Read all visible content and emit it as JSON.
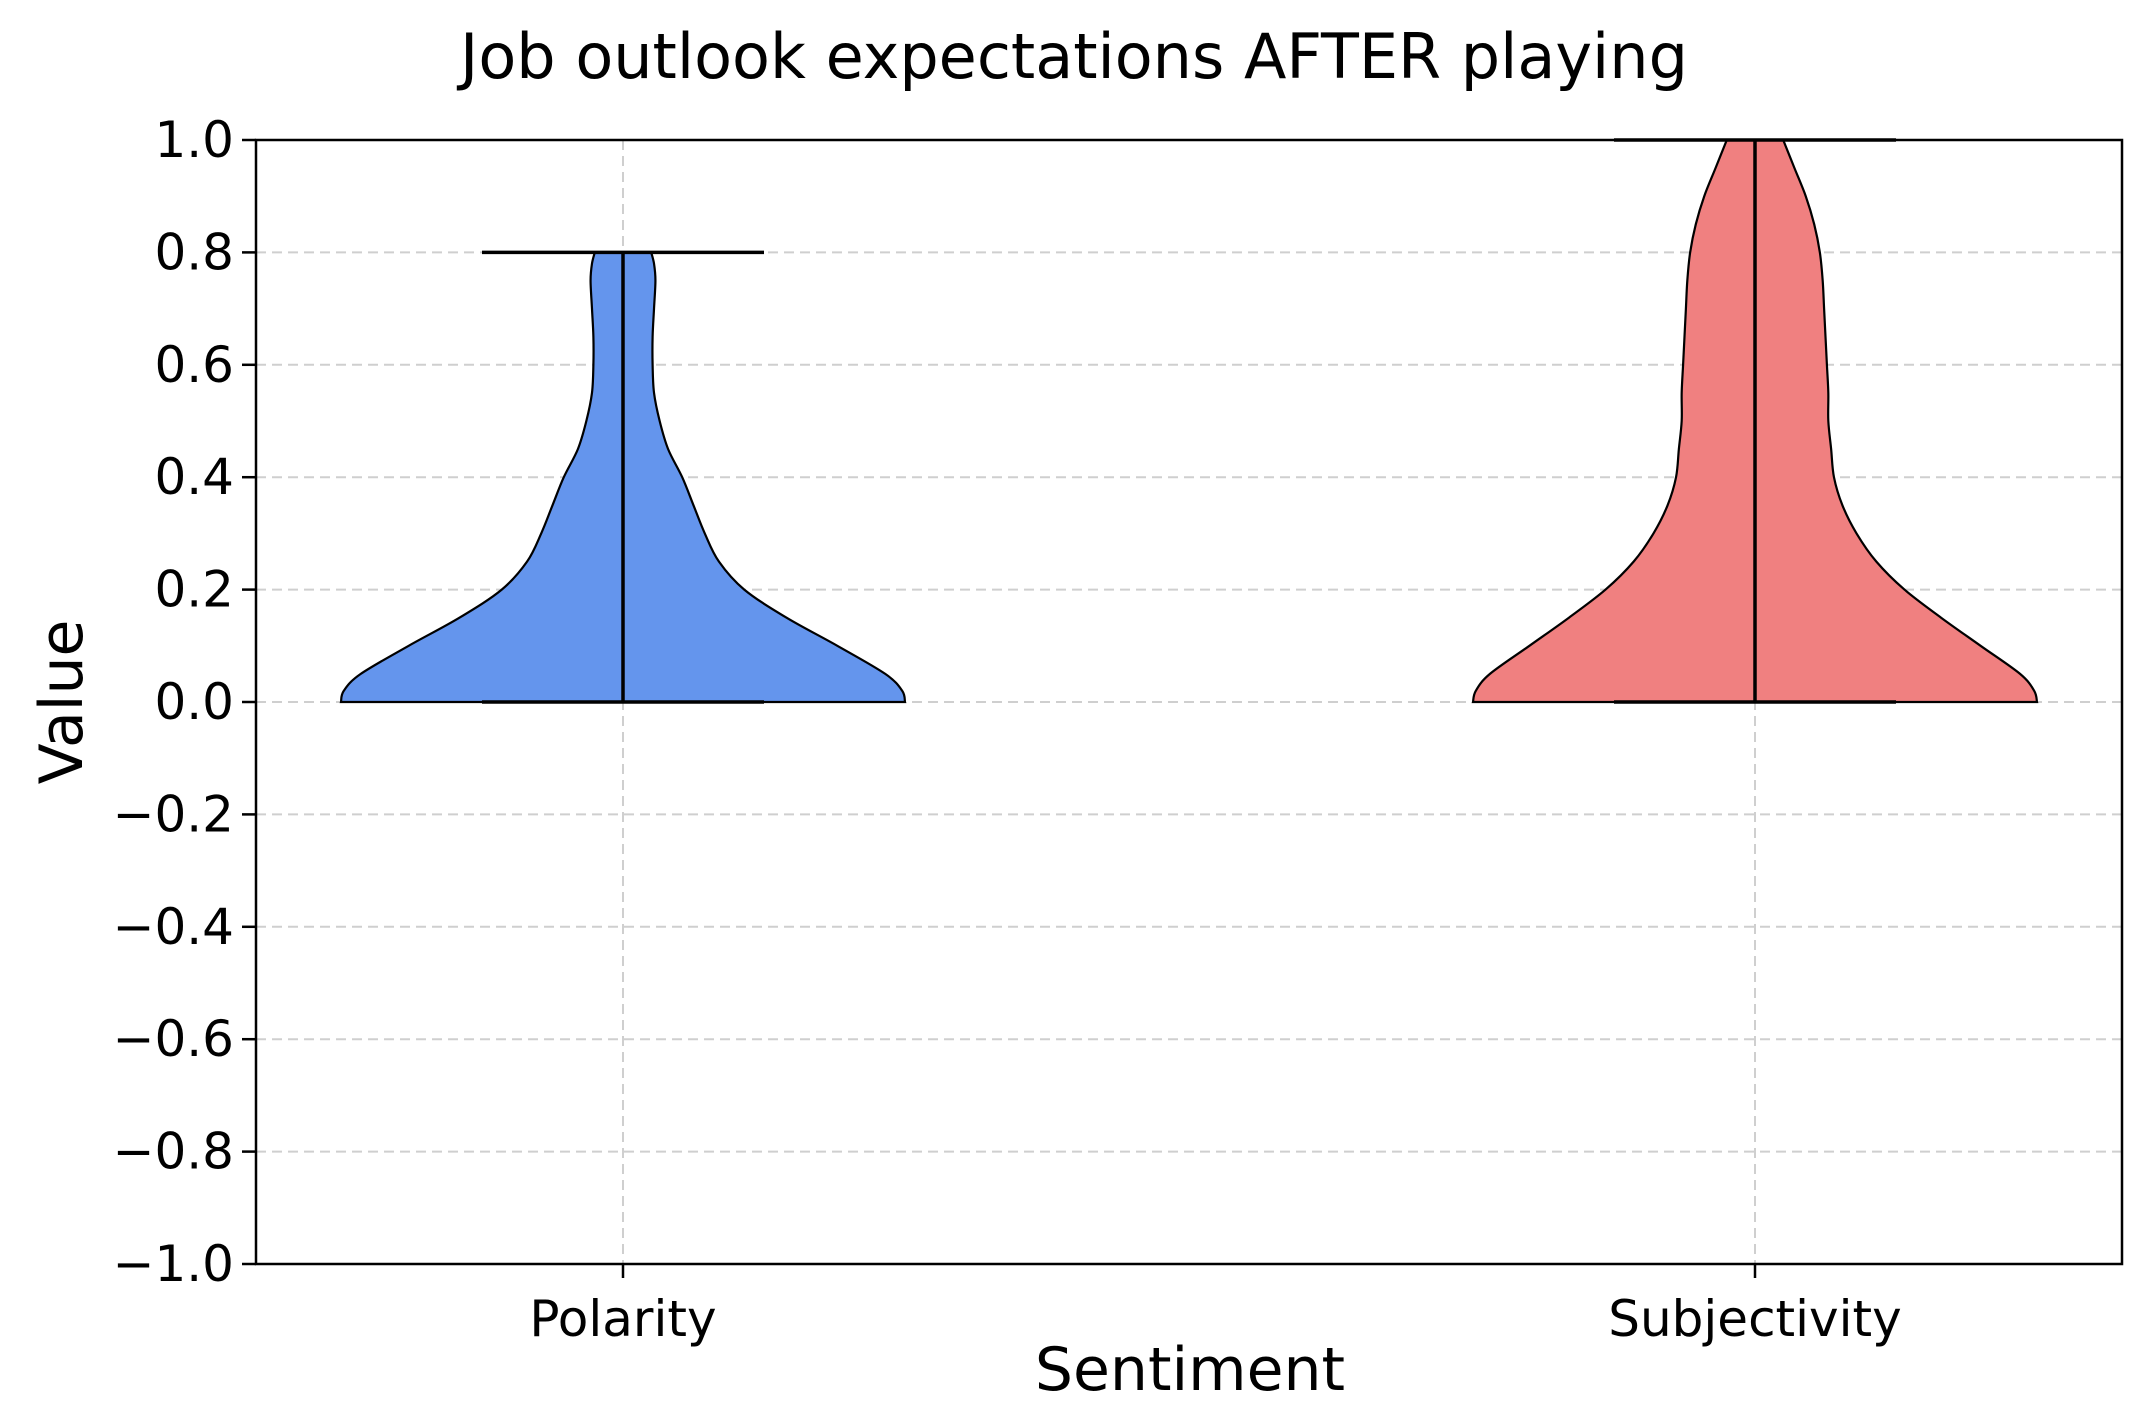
{
  "chart_data": {
    "type": "violin",
    "title": "Job outlook expectations AFTER playing",
    "xlabel": "Sentiment",
    "ylabel": "Value",
    "ylim": [
      -1.0,
      1.0
    ],
    "yticks": [
      -1.0,
      -0.8,
      -0.6,
      -0.4,
      -0.2,
      0.0,
      0.2,
      0.4,
      0.6,
      0.8,
      1.0
    ],
    "grid": true,
    "categories": [
      "Polarity",
      "Subjectivity"
    ],
    "series": [
      {
        "category": "Polarity",
        "color": "#6495ED",
        "min": 0.0,
        "max": 0.8,
        "density": [
          {
            "y": 0.0,
            "w": 1.0
          },
          {
            "y": 0.02,
            "w": 0.99
          },
          {
            "y": 0.05,
            "w": 0.93
          },
          {
            "y": 0.1,
            "w": 0.76
          },
          {
            "y": 0.15,
            "w": 0.58
          },
          {
            "y": 0.2,
            "w": 0.43
          },
          {
            "y": 0.25,
            "w": 0.34
          },
          {
            "y": 0.3,
            "w": 0.29
          },
          {
            "y": 0.35,
            "w": 0.25
          },
          {
            "y": 0.4,
            "w": 0.21
          },
          {
            "y": 0.45,
            "w": 0.16
          },
          {
            "y": 0.5,
            "w": 0.13
          },
          {
            "y": 0.55,
            "w": 0.11
          },
          {
            "y": 0.6,
            "w": 0.105
          },
          {
            "y": 0.65,
            "w": 0.105
          },
          {
            "y": 0.7,
            "w": 0.11
          },
          {
            "y": 0.75,
            "w": 0.115
          },
          {
            "y": 0.78,
            "w": 0.11
          },
          {
            "y": 0.8,
            "w": 0.1
          }
        ]
      },
      {
        "category": "Subjectivity",
        "color": "#F08080",
        "min": 0.0,
        "max": 1.0,
        "density": [
          {
            "y": 0.0,
            "w": 1.0
          },
          {
            "y": 0.02,
            "w": 0.99
          },
          {
            "y": 0.05,
            "w": 0.94
          },
          {
            "y": 0.1,
            "w": 0.8
          },
          {
            "y": 0.15,
            "w": 0.66
          },
          {
            "y": 0.2,
            "w": 0.53
          },
          {
            "y": 0.25,
            "w": 0.43
          },
          {
            "y": 0.3,
            "w": 0.36
          },
          {
            "y": 0.35,
            "w": 0.31
          },
          {
            "y": 0.4,
            "w": 0.28
          },
          {
            "y": 0.45,
            "w": 0.27
          },
          {
            "y": 0.5,
            "w": 0.26
          },
          {
            "y": 0.55,
            "w": 0.26
          },
          {
            "y": 0.6,
            "w": 0.255
          },
          {
            "y": 0.65,
            "w": 0.25
          },
          {
            "y": 0.7,
            "w": 0.245
          },
          {
            "y": 0.75,
            "w": 0.24
          },
          {
            "y": 0.8,
            "w": 0.23
          },
          {
            "y": 0.85,
            "w": 0.21
          },
          {
            "y": 0.9,
            "w": 0.18
          },
          {
            "y": 0.95,
            "w": 0.14
          },
          {
            "y": 1.0,
            "w": 0.1
          }
        ]
      }
    ]
  }
}
